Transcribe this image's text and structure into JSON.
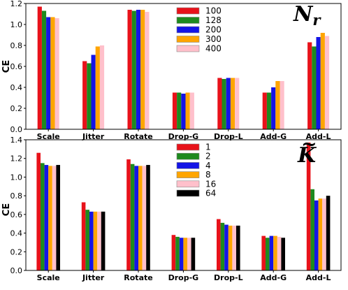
{
  "chart_data": [
    {
      "type": "bar",
      "title": "N_r",
      "title_main": "N",
      "title_sub": "r",
      "ylabel": "CE",
      "ylim": [
        0,
        1.2
      ],
      "yticks": [
        "0.0",
        "0.2",
        "0.4",
        "0.6",
        "0.8",
        "1.0",
        "1.2"
      ],
      "categories": [
        "Scale",
        "Jitter",
        "Rotate",
        "Drop-G",
        "Drop-L",
        "Add-G",
        "Add-L"
      ],
      "legend_position": "top-center",
      "series": [
        {
          "name": "100",
          "color": "#e8121a",
          "values": [
            1.17,
            0.65,
            1.14,
            0.35,
            0.49,
            0.35,
            0.83
          ]
        },
        {
          "name": "128",
          "color": "#1e8a1e",
          "values": [
            1.13,
            0.63,
            1.13,
            0.35,
            0.48,
            0.35,
            0.79
          ]
        },
        {
          "name": "200",
          "color": "#1414e6",
          "values": [
            1.07,
            0.71,
            1.14,
            0.34,
            0.49,
            0.4,
            0.88
          ]
        },
        {
          "name": "300",
          "color": "#ffa500",
          "values": [
            1.07,
            0.79,
            1.14,
            0.35,
            0.49,
            0.46,
            0.92
          ]
        },
        {
          "name": "400",
          "color": "#ffc0cb",
          "values": [
            1.06,
            0.8,
            1.12,
            0.35,
            0.49,
            0.46,
            0.89
          ]
        }
      ]
    },
    {
      "type": "bar",
      "title": "K~",
      "title_main": "K",
      "title_accent": "~",
      "ylabel": "CE",
      "ylim": [
        0,
        1.4
      ],
      "yticks": [
        "0.0",
        "0.2",
        "0.4",
        "0.6",
        "0.8",
        "1.0",
        "1.2",
        "1.4"
      ],
      "categories": [
        "Scale",
        "Jitter",
        "Rotate",
        "Drop-G",
        "Drop-L",
        "Add-G",
        "Add-L"
      ],
      "legend_position": "top-center",
      "series": [
        {
          "name": "1",
          "color": "#e8121a",
          "values": [
            1.26,
            0.73,
            1.19,
            0.38,
            0.55,
            0.37,
            1.37
          ]
        },
        {
          "name": "2",
          "color": "#1e8a1e",
          "values": [
            1.15,
            0.65,
            1.14,
            0.36,
            0.51,
            0.35,
            0.87
          ]
        },
        {
          "name": "4",
          "color": "#1414e6",
          "values": [
            1.13,
            0.63,
            1.12,
            0.35,
            0.49,
            0.37,
            0.75
          ]
        },
        {
          "name": "8",
          "color": "#ffa500",
          "values": [
            1.12,
            0.63,
            1.12,
            0.35,
            0.48,
            0.37,
            0.77
          ]
        },
        {
          "name": "16",
          "color": "#ffc0cb",
          "values": [
            1.12,
            0.63,
            1.12,
            0.35,
            0.48,
            0.36,
            0.77
          ]
        },
        {
          "name": "64",
          "color": "#000000",
          "values": [
            1.13,
            0.63,
            1.13,
            0.35,
            0.48,
            0.35,
            0.8
          ]
        }
      ]
    }
  ]
}
